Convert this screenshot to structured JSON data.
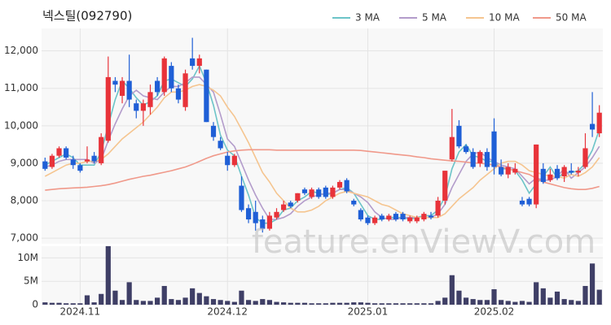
{
  "chart_data": {
    "type": "candlestick",
    "title": "넥스틸(092790)",
    "watermark": "feature.enViewV.com",
    "categories": [
      null,
      null,
      null,
      null,
      null,
      "2024.11",
      null,
      null,
      null,
      null,
      null,
      null,
      null,
      null,
      null,
      null,
      null,
      null,
      null,
      null,
      null,
      null,
      null,
      null,
      null,
      null,
      "2024.12",
      null,
      null,
      null,
      null,
      null,
      null,
      null,
      null,
      null,
      null,
      null,
      null,
      null,
      null,
      null,
      null,
      null,
      null,
      null,
      "2025.01",
      null,
      null,
      null,
      null,
      null,
      null,
      null,
      null,
      null,
      null,
      null,
      null,
      null,
      null,
      null,
      null,
      null,
      "2025.02",
      null,
      null,
      null,
      null,
      null,
      null,
      null,
      null,
      null,
      null,
      null,
      null,
      null,
      null,
      null
    ],
    "open": [
      9050,
      8900,
      9200,
      9400,
      9100,
      8950,
      9050,
      9200,
      9000,
      9600,
      11200,
      10800,
      11200,
      10600,
      10400,
      10500,
      11200,
      10900,
      11600,
      11000,
      10500,
      11800,
      11600,
      11500,
      10000,
      9600,
      9200,
      8950,
      8400,
      7800,
      7700,
      7500,
      7250,
      7550,
      7750,
      7950,
      8000,
      8300,
      8100,
      8300,
      8350,
      8100,
      8350,
      8550,
      8000,
      7750,
      7550,
      7400,
      7600,
      7500,
      7650,
      7650,
      7450,
      7450,
      7500,
      7600,
      7600,
      8000,
      9100,
      10000,
      9450,
      9300,
      9000,
      9300,
      9850,
      8900,
      8700,
      8750,
      8000,
      8050,
      7900,
      8850,
      8550,
      8850,
      8650,
      8800,
      8750,
      8900,
      10050,
      9800
    ],
    "high": [
      9150,
      9250,
      9450,
      9450,
      9200,
      9000,
      9450,
      9300,
      9800,
      11850,
      11300,
      11300,
      11900,
      10700,
      10700,
      11100,
      11300,
      11850,
      11700,
      11100,
      11500,
      12350,
      11900,
      11500,
      10100,
      9700,
      9300,
      9250,
      8650,
      7900,
      8000,
      7600,
      7700,
      7800,
      8000,
      8000,
      8200,
      8350,
      8350,
      8350,
      8400,
      8400,
      8550,
      8600,
      8050,
      7800,
      7600,
      7600,
      7650,
      7650,
      7700,
      7700,
      7600,
      7600,
      7700,
      7700,
      8100,
      8800,
      10450,
      10150,
      9500,
      9400,
      9350,
      9400,
      10200,
      9100,
      9000,
      9000,
      8100,
      8100,
      9500,
      9000,
      8850,
      8950,
      8950,
      9000,
      8900,
      9800,
      10900,
      10550
    ],
    "low": [
      8800,
      8850,
      9150,
      9100,
      8850,
      8750,
      9000,
      9000,
      8950,
      9550,
      10900,
      10600,
      10500,
      10200,
      10000,
      10300,
      10800,
      10800,
      10900,
      10600,
      10400,
      11500,
      11400,
      10100,
      9600,
      9350,
      8800,
      8900,
      7700,
      7400,
      7200,
      7150,
      7200,
      7500,
      7700,
      7800,
      7950,
      8150,
      8050,
      8050,
      8050,
      8050,
      8300,
      8200,
      7850,
      7450,
      7350,
      7350,
      7450,
      7450,
      7450,
      7450,
      7400,
      7400,
      7450,
      7500,
      7550,
      7900,
      9050,
      9400,
      9250,
      8850,
      8900,
      8800,
      8700,
      8650,
      8600,
      8700,
      7850,
      7850,
      7800,
      8450,
      8500,
      8550,
      8500,
      8700,
      8650,
      8850,
      9700,
      9700
    ],
    "close": [
      8850,
      9200,
      9400,
      9150,
      8950,
      8800,
      9100,
      9050,
      9700,
      11300,
      11100,
      11200,
      10700,
      10400,
      10600,
      10900,
      10900,
      11800,
      11000,
      10700,
      11400,
      11600,
      11800,
      10100,
      9700,
      9400,
      8950,
      9200,
      7750,
      7500,
      7400,
      7250,
      7600,
      7700,
      7900,
      7850,
      8200,
      8200,
      8300,
      8100,
      8100,
      8350,
      8500,
      8250,
      7900,
      7500,
      7400,
      7550,
      7500,
      7600,
      7500,
      7500,
      7550,
      7550,
      7650,
      7550,
      8000,
      8800,
      9700,
      9450,
      9300,
      8900,
      9300,
      8900,
      8900,
      8700,
      8900,
      8850,
      7900,
      7900,
      9500,
      8500,
      8700,
      8600,
      8900,
      8750,
      8800,
      9400,
      9900,
      10350
    ],
    "up_color": "#e8333a",
    "down_color": "#1f5fd6",
    "series": [
      {
        "name": "3 MA",
        "color": "#6cc4c8",
        "values": [
          8950,
          9050,
          9150,
          9250,
          9150,
          8950,
          8950,
          8950,
          9300,
          10000,
          10700,
          11200,
          11000,
          10750,
          10550,
          10650,
          10800,
          11200,
          11250,
          11150,
          11050,
          11250,
          11600,
          11150,
          10550,
          9750,
          9350,
          9200,
          8650,
          8150,
          7550,
          7400,
          7400,
          7500,
          7750,
          7800,
          8000,
          8100,
          8250,
          8200,
          8150,
          8200,
          8300,
          8350,
          8200,
          7900,
          7600,
          7500,
          7500,
          7550,
          7550,
          7550,
          7500,
          7550,
          7600,
          7600,
          7750,
          8100,
          8850,
          9300,
          9500,
          9200,
          9150,
          9050,
          9050,
          8850,
          8850,
          8800,
          8550,
          8200,
          8450,
          8650,
          8900,
          8600,
          8750,
          8750,
          8800,
          9000,
          9350,
          9900
        ]
      },
      {
        "name": "5 MA",
        "color": "#b39ccb",
        "values": [
          8900,
          8950,
          9050,
          9100,
          9100,
          9100,
          9100,
          9000,
          9100,
          9600,
          10050,
          10450,
          10800,
          10950,
          10800,
          10750,
          10700,
          10900,
          11050,
          11050,
          11150,
          11300,
          11300,
          11100,
          10900,
          10300,
          9650,
          9450,
          9000,
          8550,
          8150,
          7800,
          7500,
          7500,
          7550,
          7650,
          7850,
          8000,
          8100,
          8150,
          8200,
          8200,
          8300,
          8300,
          8200,
          8100,
          7950,
          7700,
          7550,
          7500,
          7500,
          7550,
          7550,
          7550,
          7550,
          7550,
          7650,
          7900,
          8350,
          8700,
          9050,
          9250,
          9300,
          9150,
          9050,
          8950,
          8900,
          8850,
          8650,
          8450,
          8600,
          8550,
          8550,
          8650,
          8850,
          8600,
          8750,
          8900,
          9150,
          9450
        ]
      },
      {
        "name": "10 MA",
        "color": "#f5c590",
        "values": [
          8650,
          8750,
          8850,
          8950,
          9000,
          9000,
          9050,
          9050,
          9100,
          9250,
          9450,
          9650,
          9800,
          9950,
          10100,
          10300,
          10500,
          10750,
          10900,
          10900,
          10950,
          11050,
          11100,
          11050,
          10950,
          10800,
          10500,
          10250,
          9900,
          9550,
          9150,
          8750,
          8500,
          8200,
          8000,
          7800,
          7700,
          7700,
          7750,
          7850,
          8000,
          8100,
          8200,
          8250,
          8200,
          8150,
          8100,
          8000,
          7900,
          7850,
          7750,
          7650,
          7600,
          7550,
          7550,
          7550,
          7550,
          7650,
          7850,
          8050,
          8200,
          8350,
          8550,
          8700,
          8850,
          9000,
          9050,
          9050,
          8950,
          8800,
          8750,
          8700,
          8650,
          8650,
          8600,
          8700,
          8650,
          8750,
          8900,
          9150
        ]
      },
      {
        "name": "50 MA",
        "color": "#f0998a",
        "values": [
          8280,
          8300,
          8320,
          8330,
          8340,
          8350,
          8360,
          8380,
          8400,
          8430,
          8470,
          8520,
          8570,
          8610,
          8650,
          8680,
          8720,
          8760,
          8800,
          8850,
          8900,
          8970,
          9050,
          9130,
          9200,
          9250,
          9300,
          9330,
          9350,
          9360,
          9360,
          9360,
          9360,
          9350,
          9350,
          9350,
          9350,
          9350,
          9350,
          9350,
          9350,
          9350,
          9350,
          9350,
          9350,
          9340,
          9320,
          9300,
          9280,
          9260,
          9240,
          9220,
          9200,
          9170,
          9150,
          9120,
          9100,
          9080,
          9060,
          9050,
          9030,
          9010,
          9000,
          8980,
          8950,
          8900,
          8850,
          8800,
          8750,
          8700,
          8600,
          8500,
          8450,
          8400,
          8350,
          8320,
          8300,
          8300,
          8330,
          8380
        ]
      }
    ],
    "ylim": [
      6850,
      12600
    ],
    "yticks": [
      {
        "value": 7000,
        "label": "7,000"
      },
      {
        "value": 8000,
        "label": "8,000"
      },
      {
        "value": 9000,
        "label": "9,000"
      },
      {
        "value": 10000,
        "label": "10,000"
      },
      {
        "value": 11000,
        "label": "11,000"
      },
      {
        "value": 12000,
        "label": "12,000"
      }
    ],
    "grid": true,
    "legend": "top-right",
    "volume": {
      "type": "bar",
      "color": "#3f3f66",
      "values": [
        500000,
        400000,
        400000,
        300000,
        300000,
        300000,
        2000000,
        500000,
        2300000,
        12500000,
        3000000,
        1000000,
        4800000,
        1000000,
        800000,
        800000,
        1500000,
        4000000,
        1200000,
        1000000,
        1500000,
        3500000,
        2500000,
        1800000,
        1200000,
        1000000,
        800000,
        600000,
        3000000,
        1000000,
        800000,
        1200000,
        1000000,
        600000,
        500000,
        400000,
        400000,
        400000,
        300000,
        300000,
        300000,
        400000,
        400000,
        400000,
        500000,
        500000,
        400000,
        300000,
        300000,
        300000,
        300000,
        300000,
        300000,
        300000,
        300000,
        300000,
        800000,
        1500000,
        6300000,
        3000000,
        1500000,
        1200000,
        1000000,
        1000000,
        3300000,
        1000000,
        800000,
        600000,
        800000,
        600000,
        4800000,
        3500000,
        1500000,
        2800000,
        1200000,
        1000000,
        800000,
        4000000,
        8800000,
        3200000
      ],
      "ylim": [
        0,
        12500000
      ],
      "yticks": [
        {
          "value": 0,
          "label": "0"
        },
        {
          "value": 5000000,
          "label": "5M"
        },
        {
          "value": 10000000,
          "label": "10M"
        }
      ]
    }
  }
}
